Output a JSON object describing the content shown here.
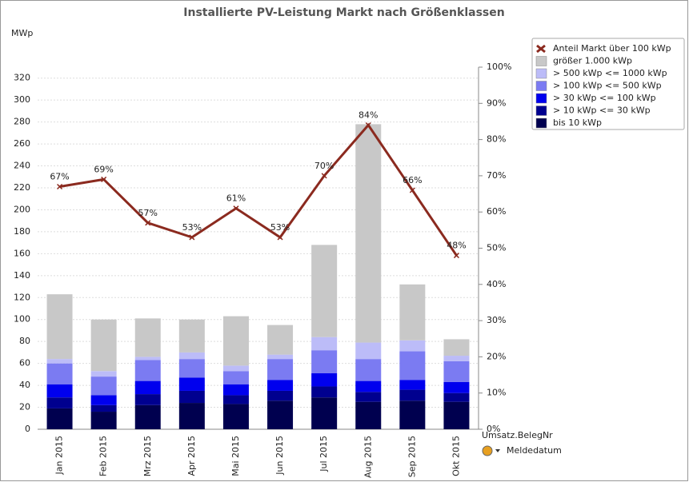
{
  "chart_data": {
    "type": "bar",
    "title": "Installierte PV-Leistung Markt nach Größenklassen",
    "y_label": "MWp",
    "dimension_label": "Umsatz.BelegNr",
    "x_label": "Meldedatum",
    "stacked": true,
    "categories": [
      "Jan 2015",
      "Feb 2015",
      "Mrz 2015",
      "Apr 2015",
      "Mai 2015",
      "Jun 2015",
      "Jul 2015",
      "Aug 2015",
      "Sep 2015",
      "Okt 2015"
    ],
    "series": [
      {
        "name": "bis 10 kWp",
        "color": "#00004f",
        "values": [
          19,
          16,
          22,
          24,
          23,
          26,
          29,
          25,
          26,
          25
        ]
      },
      {
        "name": "> 10 kWp <= 30 kWp",
        "color": "#00008f",
        "values": [
          10,
          6,
          10,
          11,
          8,
          9,
          10,
          9,
          10,
          8
        ]
      },
      {
        "name": "> 30 kWp <= 100 kWp",
        "color": "#0000ee",
        "values": [
          12,
          9,
          12,
          12,
          10,
          10,
          12,
          10,
          9,
          10
        ]
      },
      {
        "name": "> 100 kWp <= 500 kWp",
        "color": "#7b7bf2",
        "values": [
          19,
          17,
          19,
          17,
          12,
          19,
          21,
          20,
          26,
          19
        ]
      },
      {
        "name": "> 500 kWp <= 1000 kWp",
        "color": "#bcbcf8",
        "values": [
          4,
          5,
          3,
          6,
          5,
          4,
          12,
          15,
          10,
          5
        ]
      },
      {
        "name": "größer 1.000 kWp",
        "color": "#c8c8c8",
        "values": [
          59,
          47,
          35,
          30,
          45,
          27,
          84,
          199,
          51,
          15
        ]
      },
      {
        "name": "Anteil Markt über 100 kWp",
        "color": "#8b2a1f",
        "type": "line",
        "axis": "y2",
        "values": [
          67,
          69,
          57,
          53,
          61,
          53,
          70,
          84,
          66,
          48
        ],
        "value_labels": [
          "67%",
          "69%",
          "57%",
          "53%",
          "61%",
          "53%",
          "70%",
          "84%",
          "66%",
          "48%"
        ]
      }
    ],
    "ylim": [
      0,
      330
    ],
    "yticks": [
      0,
      20,
      40,
      60,
      80,
      100,
      120,
      140,
      160,
      180,
      200,
      220,
      240,
      260,
      280,
      300,
      320
    ],
    "y2lim": [
      0,
      100
    ],
    "y2ticks": [
      {
        "value": 0,
        "label": "0%"
      },
      {
        "value": 10,
        "label": "10%"
      },
      {
        "value": 20,
        "label": "20%"
      },
      {
        "value": 30,
        "label": "30%"
      },
      {
        "value": 40,
        "label": "40%"
      },
      {
        "value": 50,
        "label": "50%"
      },
      {
        "value": 60,
        "label": "60%"
      },
      {
        "value": 70,
        "label": "70%"
      },
      {
        "value": 80,
        "label": "80%"
      },
      {
        "value": 90,
        "label": "90%"
      },
      {
        "value": 100,
        "label": "100%"
      }
    ],
    "grid": true
  }
}
